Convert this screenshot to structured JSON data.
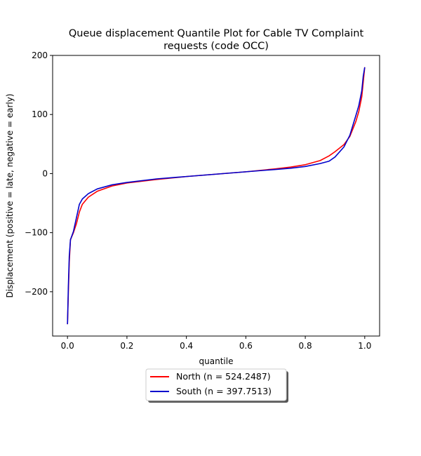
{
  "chart_data": {
    "type": "line",
    "title_lines": [
      "Queue displacement Quantile Plot for Cable TV Complaint",
      "requests (code OCC)"
    ],
    "xlabel": "quantile",
    "ylabel": "Displacement (positive = late, negative = early)",
    "xlim": [
      -0.05,
      1.05
    ],
    "ylim": [
      -275,
      200
    ],
    "xticks": [
      0.0,
      0.2,
      0.4,
      0.6,
      0.8,
      1.0
    ],
    "xtick_labels": [
      "0.0",
      "0.2",
      "0.4",
      "0.6",
      "0.8",
      "1.0"
    ],
    "yticks": [
      -200,
      -100,
      0,
      100,
      200
    ],
    "ytick_labels": [
      "−200",
      "−100",
      "0",
      "100",
      "200"
    ],
    "grid": false,
    "legend_position": "below-center",
    "series": [
      {
        "name": "North (n = 524.2487)",
        "color": "#ff0000",
        "points": [
          [
            0.0,
            -255
          ],
          [
            0.003,
            -200
          ],
          [
            0.006,
            -150
          ],
          [
            0.01,
            -112
          ],
          [
            0.02,
            -100
          ],
          [
            0.03,
            -85
          ],
          [
            0.04,
            -65
          ],
          [
            0.05,
            -52
          ],
          [
            0.07,
            -40
          ],
          [
            0.1,
            -30
          ],
          [
            0.15,
            -21
          ],
          [
            0.2,
            -16
          ],
          [
            0.3,
            -10
          ],
          [
            0.4,
            -5
          ],
          [
            0.5,
            -1
          ],
          [
            0.6,
            3
          ],
          [
            0.7,
            8
          ],
          [
            0.75,
            11
          ],
          [
            0.8,
            15
          ],
          [
            0.85,
            22
          ],
          [
            0.88,
            30
          ],
          [
            0.9,
            37
          ],
          [
            0.93,
            49
          ],
          [
            0.95,
            63
          ],
          [
            0.97,
            88
          ],
          [
            0.98,
            105
          ],
          [
            0.99,
            130
          ],
          [
            0.995,
            155
          ],
          [
            1.0,
            180
          ]
        ]
      },
      {
        "name": "South (n = 397.7513)",
        "color": "#0000cc",
        "points": [
          [
            0.0,
            -255
          ],
          [
            0.003,
            -190
          ],
          [
            0.006,
            -140
          ],
          [
            0.01,
            -112
          ],
          [
            0.02,
            -98
          ],
          [
            0.03,
            -75
          ],
          [
            0.04,
            -52
          ],
          [
            0.05,
            -43
          ],
          [
            0.07,
            -34
          ],
          [
            0.1,
            -26
          ],
          [
            0.15,
            -19
          ],
          [
            0.2,
            -15
          ],
          [
            0.3,
            -9
          ],
          [
            0.4,
            -5
          ],
          [
            0.5,
            -1
          ],
          [
            0.6,
            3
          ],
          [
            0.7,
            7
          ],
          [
            0.75,
            9
          ],
          [
            0.8,
            12
          ],
          [
            0.85,
            17
          ],
          [
            0.88,
            21
          ],
          [
            0.9,
            28
          ],
          [
            0.93,
            45
          ],
          [
            0.95,
            65
          ],
          [
            0.97,
            98
          ],
          [
            0.98,
            115
          ],
          [
            0.99,
            140
          ],
          [
            0.995,
            165
          ],
          [
            1.0,
            180
          ]
        ]
      }
    ]
  }
}
